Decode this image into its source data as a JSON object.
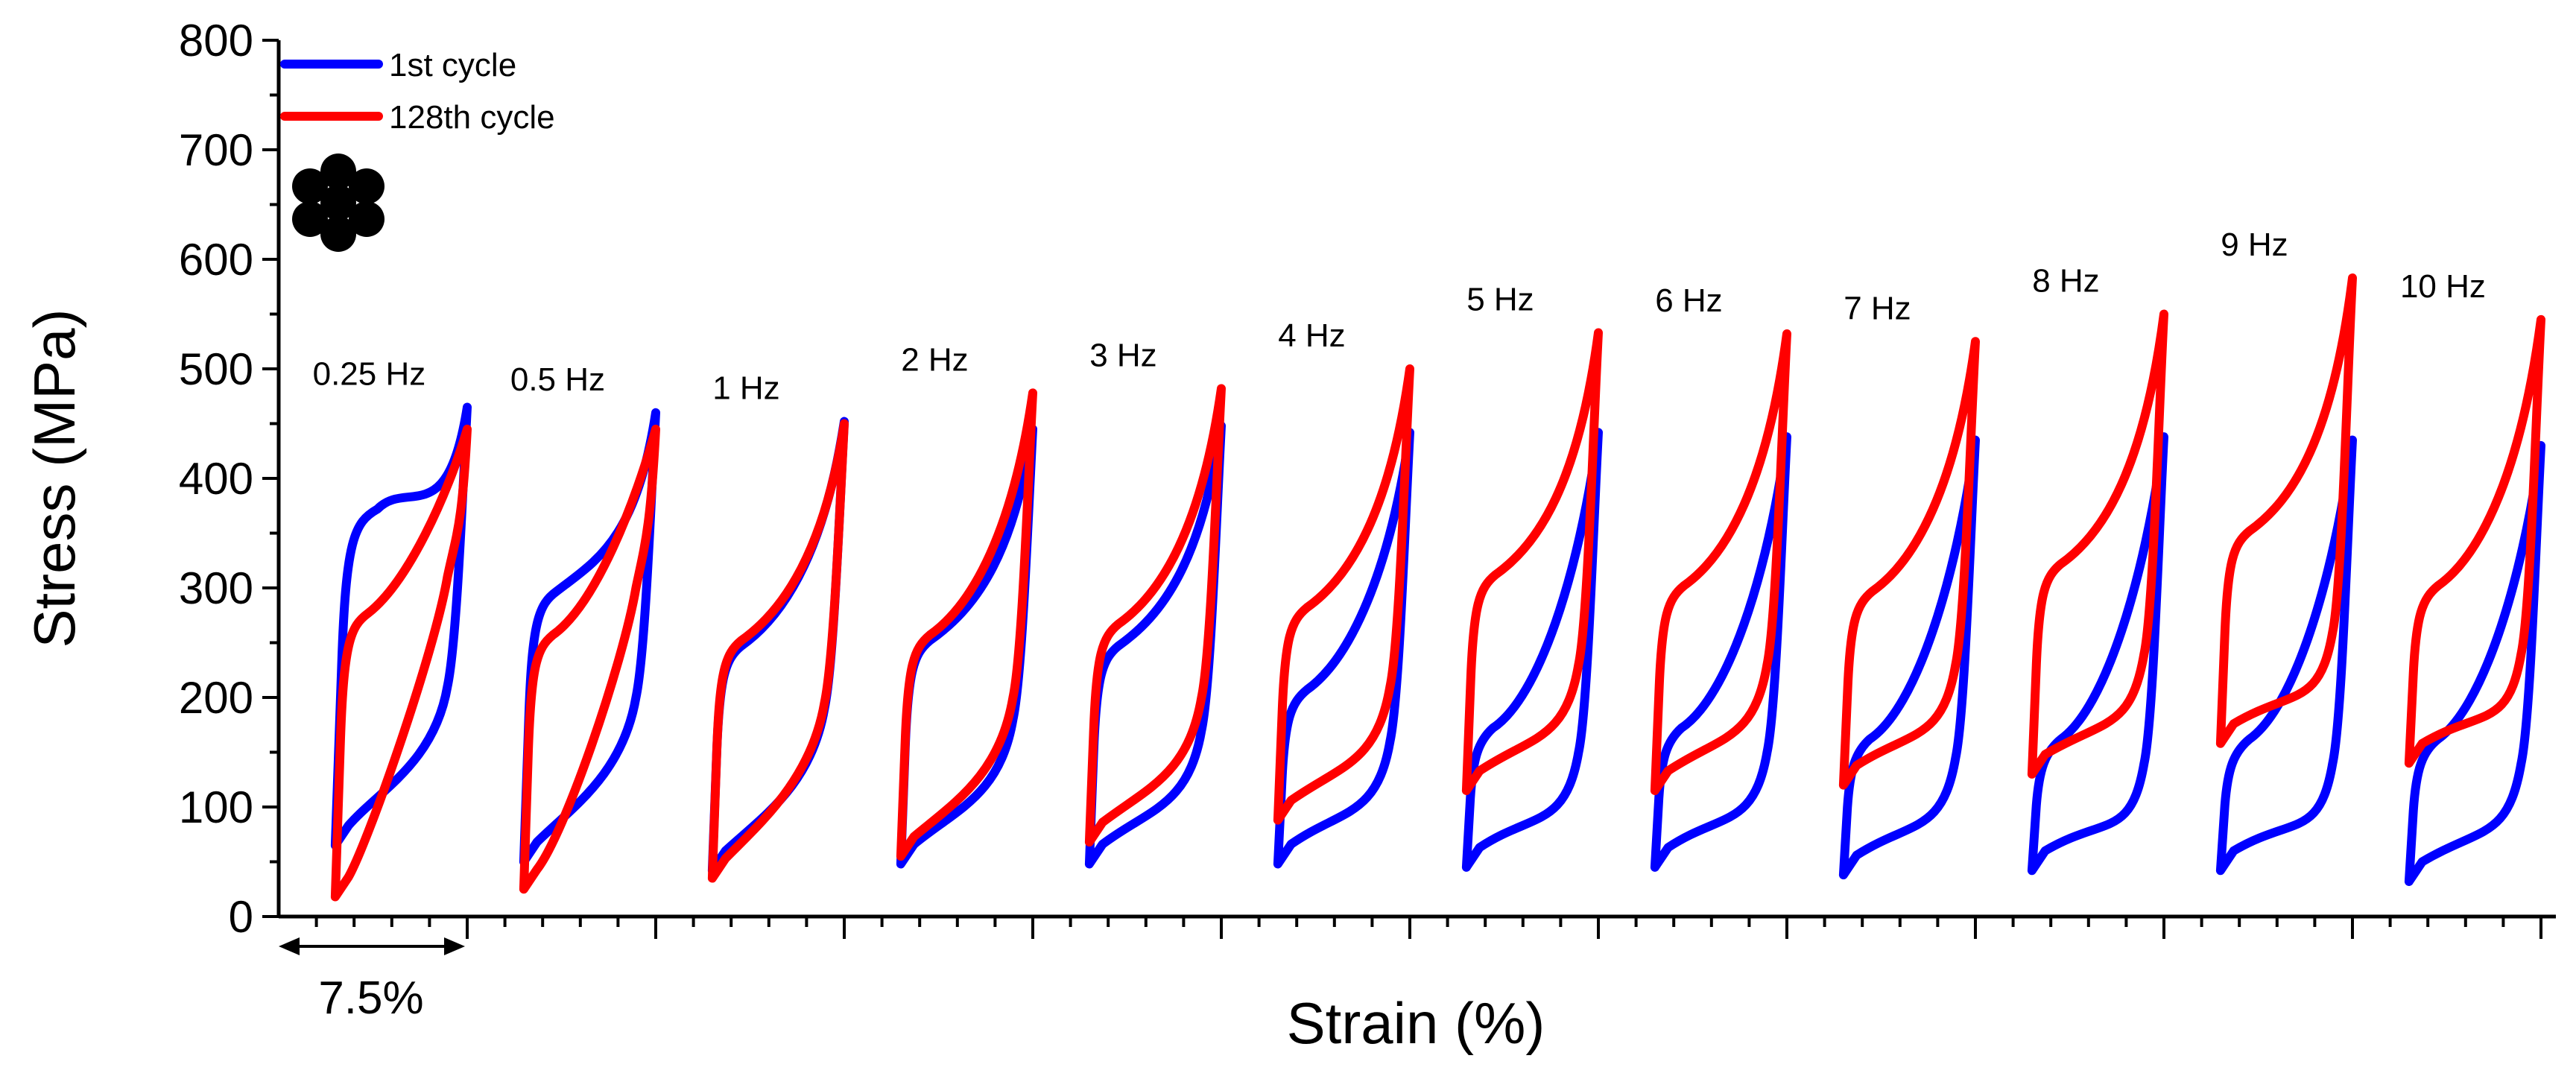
{
  "chart_data": {
    "type": "line",
    "title": "",
    "xlabel": "Strain (%)",
    "ylabel": "Stress (MPa)",
    "ylim": [
      0,
      800
    ],
    "yticks": [
      0,
      100,
      200,
      300,
      400,
      500,
      600,
      700,
      800
    ],
    "scale_bar_label": "7.5%",
    "strain_per_panel": 7.5,
    "legend": [
      {
        "name": "1st cycle",
        "color": "#0000ff"
      },
      {
        "name": "128th cycle",
        "color": "#ff0000"
      }
    ],
    "panels": [
      {
        "label": "0.25 Hz",
        "first": {
          "min": 65,
          "max": 465,
          "knee": 360,
          "yield_strain": 0.32,
          "mid": 210,
          "low_at": 0.33
        },
        "last": {
          "min": 18,
          "max": 445,
          "knee": 265,
          "yield_strain": 0.25,
          "mid": 310,
          "low_at": 0.25
        }
      },
      {
        "label": "0.5 Hz",
        "first": {
          "min": 50,
          "max": 460,
          "knee": 285,
          "yield_strain": 0.25,
          "mid": 200,
          "low_at": 0.37
        },
        "last": {
          "min": 25,
          "max": 445,
          "knee": 245,
          "yield_strain": 0.22,
          "mid": 300,
          "low_at": 0.31
        }
      },
      {
        "label": "1 Hz",
        "first": {
          "min": 42,
          "max": 452,
          "knee": 235,
          "yield_strain": 0.22,
          "mid": 190,
          "low_at": 0.39
        },
        "last": {
          "min": 35,
          "max": 450,
          "knee": 240,
          "yield_strain": 0.22,
          "mid": 195,
          "low_at": 0.36
        }
      },
      {
        "label": "2 Hz",
        "first": {
          "min": 48,
          "max": 445,
          "knee": 240,
          "yield_strain": 0.22,
          "mid": 180,
          "low_at": 0.42
        },
        "last": {
          "min": 55,
          "max": 478,
          "knee": 245,
          "yield_strain": 0.22,
          "mid": 200,
          "low_at": 0.42
        }
      },
      {
        "label": "3 Hz",
        "first": {
          "min": 48,
          "max": 448,
          "knee": 235,
          "yield_strain": 0.22,
          "mid": 170,
          "low_at": 0.45
        },
        "last": {
          "min": 68,
          "max": 482,
          "knee": 255,
          "yield_strain": 0.22,
          "mid": 200,
          "low_at": 0.45
        }
      },
      {
        "label": "4 Hz",
        "first": {
          "min": 48,
          "max": 442,
          "knee": 195,
          "yield_strain": 0.22,
          "mid": 160,
          "low_at": 0.48
        },
        "last": {
          "min": 88,
          "max": 500,
          "knee": 270,
          "yield_strain": 0.22,
          "mid": 210,
          "low_at": 0.48
        }
      },
      {
        "label": "5 Hz",
        "first": {
          "min": 45,
          "max": 442,
          "knee": 160,
          "yield_strain": 0.2,
          "mid": 150,
          "low_at": 0.5
        },
        "last": {
          "min": 115,
          "max": 533,
          "knee": 300,
          "yield_strain": 0.22,
          "mid": 230,
          "low_at": 0.5
        }
      },
      {
        "label": "6 Hz",
        "first": {
          "min": 45,
          "max": 438,
          "knee": 160,
          "yield_strain": 0.2,
          "mid": 150,
          "low_at": 0.5
        },
        "last": {
          "min": 115,
          "max": 532,
          "knee": 290,
          "yield_strain": 0.22,
          "mid": 230,
          "low_at": 0.5
        }
      },
      {
        "label": "7 Hz",
        "first": {
          "min": 38,
          "max": 435,
          "knee": 150,
          "yield_strain": 0.2,
          "mid": 145,
          "low_at": 0.52
        },
        "last": {
          "min": 120,
          "max": 525,
          "knee": 285,
          "yield_strain": 0.22,
          "mid": 230,
          "low_at": 0.52
        }
      },
      {
        "label": "8 Hz",
        "first": {
          "min": 42,
          "max": 438,
          "knee": 150,
          "yield_strain": 0.22,
          "mid": 140,
          "low_at": 0.55
        },
        "last": {
          "min": 130,
          "max": 550,
          "knee": 310,
          "yield_strain": 0.22,
          "mid": 240,
          "low_at": 0.55
        }
      },
      {
        "label": "9 Hz",
        "first": {
          "min": 42,
          "max": 435,
          "knee": 150,
          "yield_strain": 0.22,
          "mid": 140,
          "low_at": 0.55
        },
        "last": {
          "min": 158,
          "max": 583,
          "knee": 340,
          "yield_strain": 0.22,
          "mid": 260,
          "low_at": 0.55
        }
      },
      {
        "label": "10 Hz",
        "first": {
          "min": 32,
          "max": 430,
          "knee": 150,
          "yield_strain": 0.22,
          "mid": 140,
          "low_at": 0.55
        },
        "last": {
          "min": 140,
          "max": 545,
          "knee": 290,
          "yield_strain": 0.22,
          "mid": 240,
          "low_at": 0.55
        }
      }
    ]
  }
}
